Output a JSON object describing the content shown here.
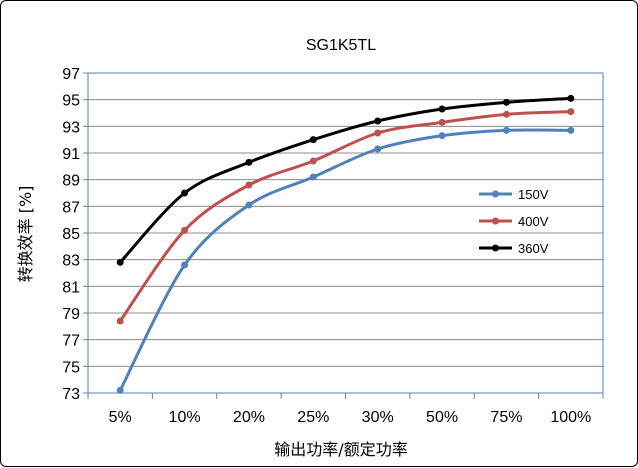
{
  "chart_data": {
    "type": "line",
    "title": "SG1K5TL",
    "xlabel": "输出功率/额定功率",
    "ylabel": "转换效率 [%]",
    "categories": [
      "5%",
      "10%",
      "20%",
      "25%",
      "30%",
      "50%",
      "75%",
      "100%"
    ],
    "ylim": [
      73,
      97
    ],
    "yticks": [
      "73",
      "75",
      "77",
      "79",
      "81",
      "83",
      "85",
      "87",
      "89",
      "91",
      "93",
      "95",
      "97"
    ],
    "grid": true,
    "legend_position": "right",
    "series": [
      {
        "name": "150V",
        "color": "#4F81BD",
        "values": [
          73.2,
          82.6,
          87.1,
          89.2,
          91.3,
          92.3,
          92.7,
          92.7
        ]
      },
      {
        "name": "400V",
        "color": "#C0504D",
        "values": [
          78.4,
          85.2,
          88.6,
          90.4,
          92.5,
          93.3,
          93.9,
          94.1
        ]
      },
      {
        "name": "360V",
        "color": "#000000",
        "values": [
          82.8,
          88.0,
          90.3,
          92.0,
          93.4,
          94.3,
          94.8,
          95.1
        ]
      }
    ]
  }
}
